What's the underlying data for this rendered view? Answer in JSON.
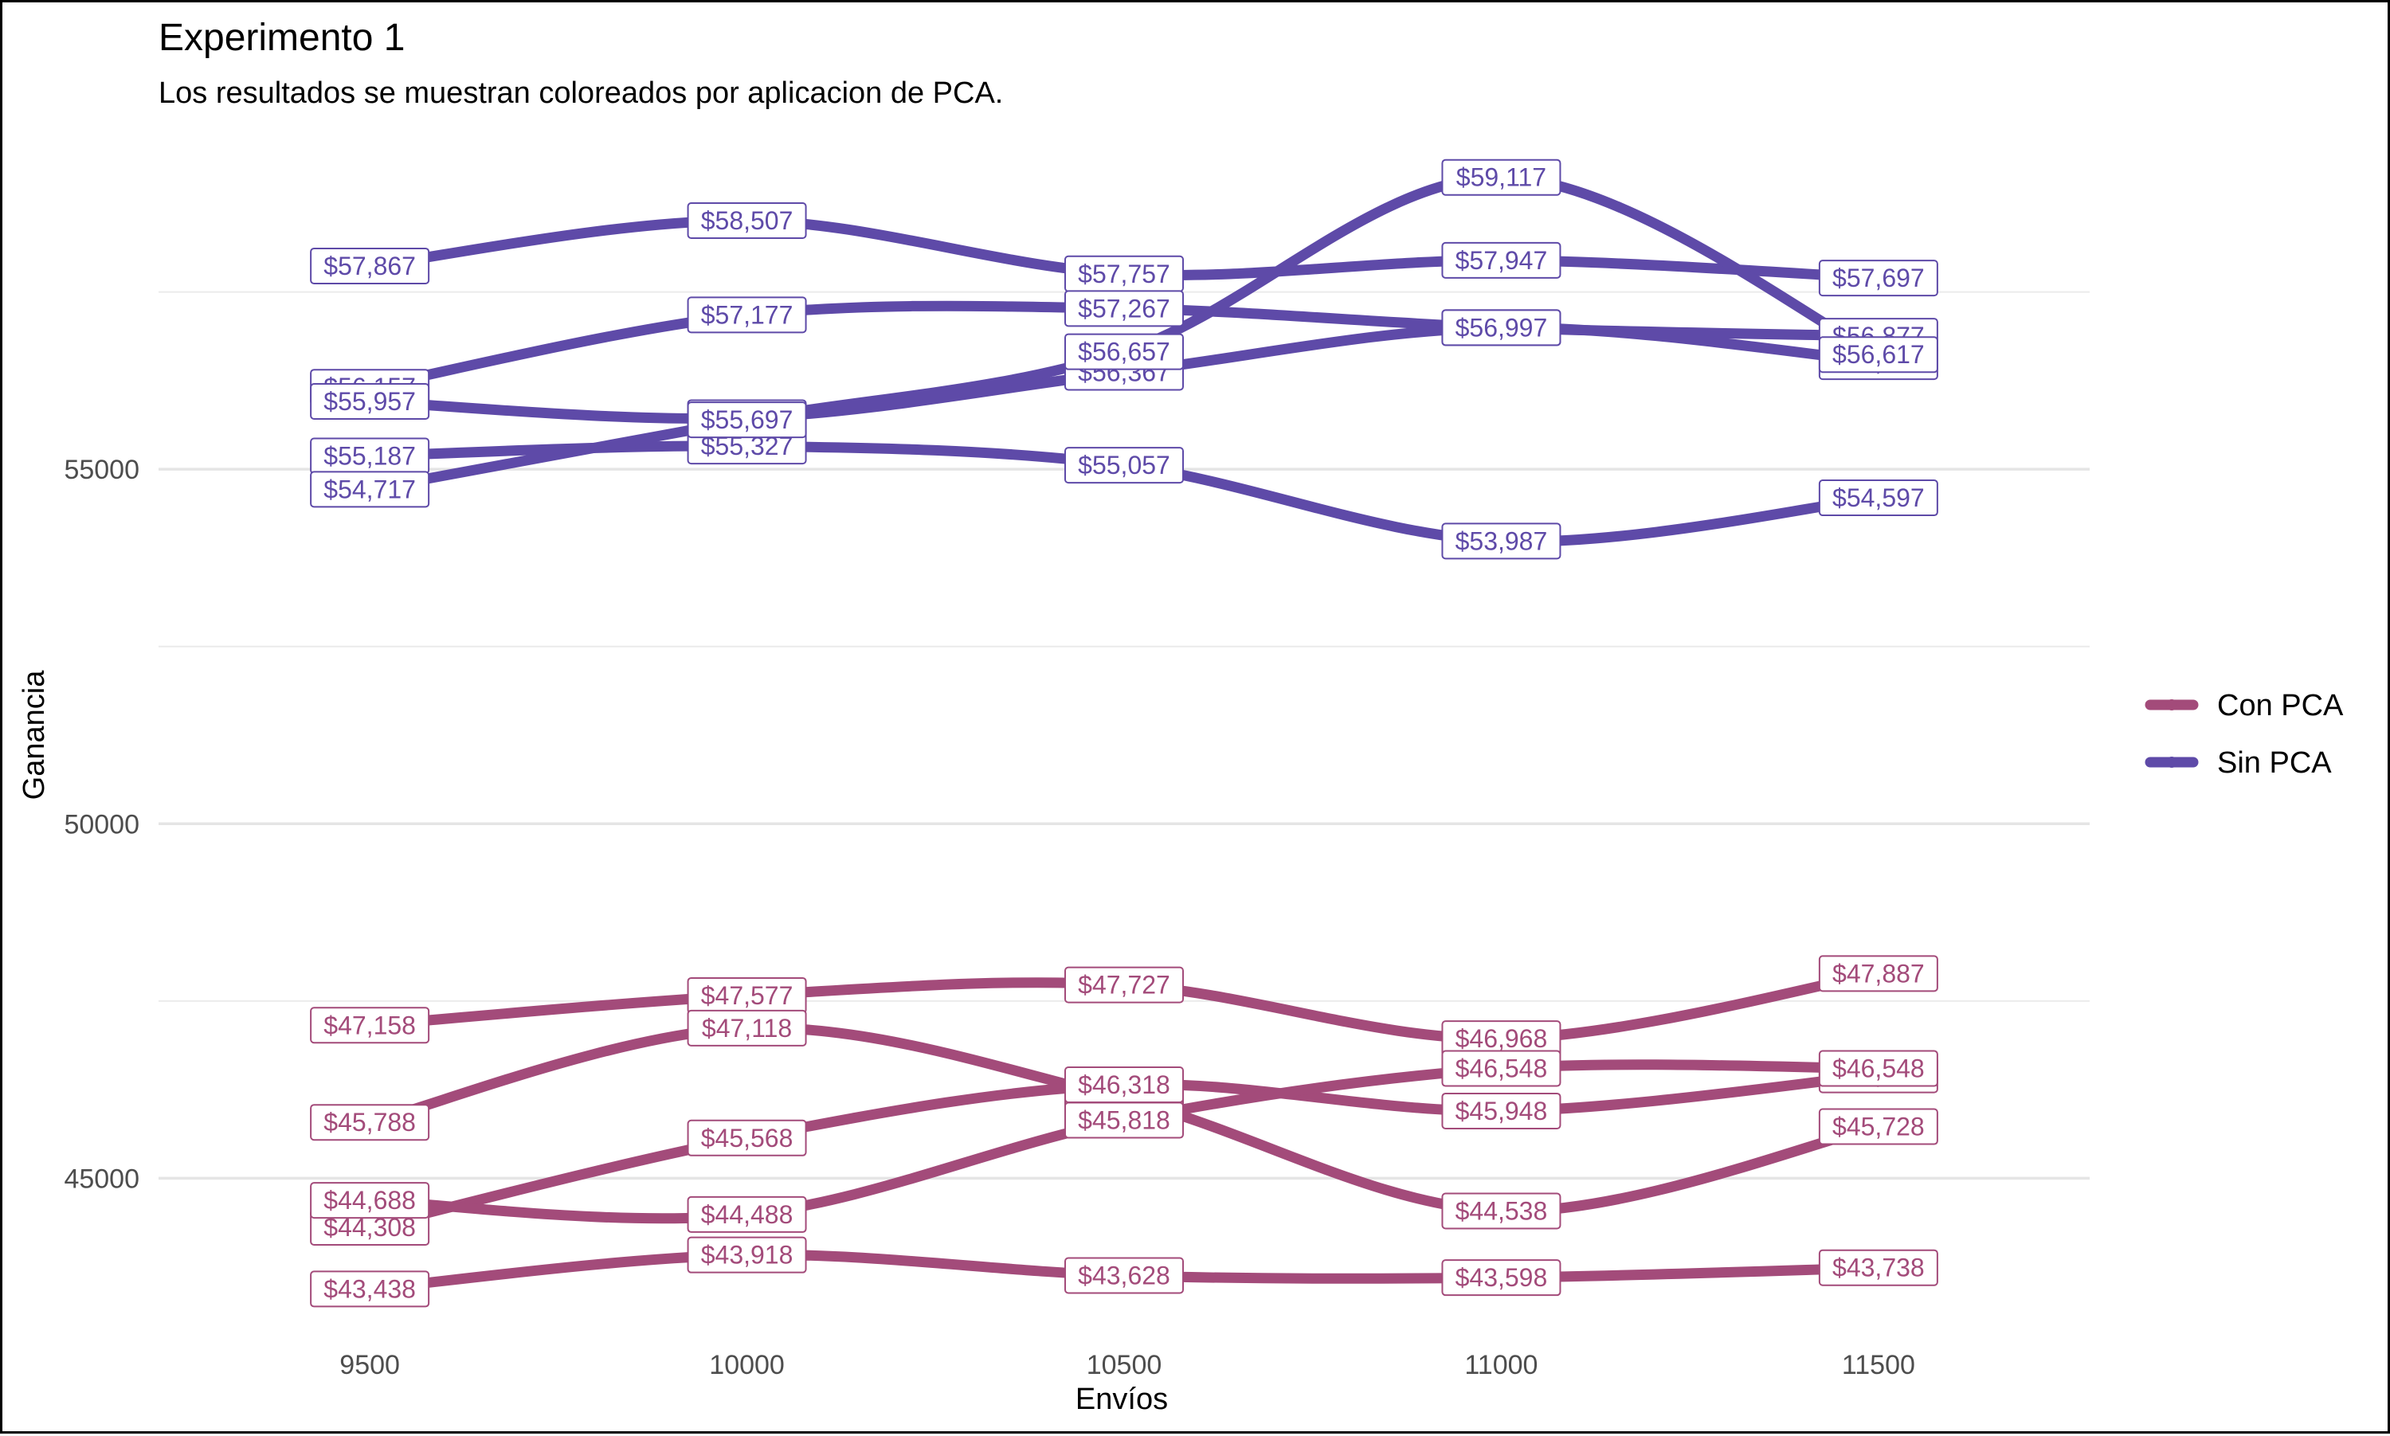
{
  "chart_data": {
    "type": "line",
    "title": "Experimento 1",
    "subtitle": "Los resultados se muestran coloreados por aplicacion de PCA.",
    "xlabel": "Envíos",
    "ylabel": "Ganancia",
    "x": [
      9500,
      10000,
      10500,
      11000,
      11500
    ],
    "xlim": [
      9220,
      11780
    ],
    "ylim": [
      42600,
      59900
    ],
    "y_ticks": [
      45000,
      50000,
      55000
    ],
    "y_minor_ticks": [
      47500,
      52500,
      57500
    ],
    "grid": true,
    "legend_position": "right",
    "colors": {
      "Con PCA": "#a34b7a",
      "Sin PCA": "#5e4aa8"
    },
    "legend": [
      "Con PCA",
      "Sin PCA"
    ],
    "series": [
      {
        "group": "Sin PCA",
        "values": [
          57867,
          58507,
          57757,
          57947,
          57697
        ],
        "labels": [
          "$57,867",
          "$58,507",
          "$57,757",
          "$57,947",
          "$57,697"
        ]
      },
      {
        "group": "Sin PCA",
        "values": [
          56157,
          57177,
          57267,
          56997,
          56877
        ],
        "labels": [
          "$56,157",
          "$57,177",
          "$57,267",
          "$56,997",
          "$56,877"
        ]
      },
      {
        "group": "Sin PCA",
        "values": [
          55957,
          55727,
          56367,
          56997,
          56517
        ],
        "labels": [
          "$55,957",
          "$55,727",
          "$56,367",
          "$56,997",
          "$56,517"
        ]
      },
      {
        "group": "Sin PCA",
        "values": [
          55187,
          55327,
          55057,
          53987,
          54597
        ],
        "labels": [
          "$55,187",
          "$55,327",
          "$55,057",
          "$53,987",
          "$54,597"
        ]
      },
      {
        "group": "Sin PCA",
        "values": [
          54717,
          55697,
          56657,
          59117,
          56617
        ],
        "labels": [
          "$54,717",
          "$55,697",
          "$56,657",
          "$59,117",
          "$56,617"
        ]
      },
      {
        "group": "Con PCA",
        "values": [
          47158,
          47577,
          47727,
          46968,
          47887
        ],
        "labels": [
          "$47,158",
          "$47,577",
          "$47,727",
          "$46,968",
          "$47,887"
        ]
      },
      {
        "group": "Con PCA",
        "values": [
          45788,
          47118,
          46118,
          44538,
          45728
        ],
        "labels": [
          "$45,788",
          "$47,118",
          "$46,118",
          "$44,538",
          "$45,728"
        ]
      },
      {
        "group": "Con PCA",
        "values": [
          44308,
          45568,
          46318,
          45948,
          46458
        ],
        "labels": [
          "$44,308",
          "$45,568",
          "$46,318",
          "$45,948",
          "$46,458"
        ]
      },
      {
        "group": "Con PCA",
        "values": [
          44688,
          44488,
          45818,
          46548,
          46548
        ],
        "labels": [
          "$44,688",
          "$44,488",
          "$45,818",
          "$46,548",
          "$46,548"
        ]
      },
      {
        "group": "Con PCA",
        "values": [
          43438,
          43918,
          43628,
          43598,
          43738
        ],
        "labels": [
          "$43,438",
          "$43,918",
          "$43,628",
          "$43,598",
          "$43,738"
        ]
      }
    ]
  }
}
